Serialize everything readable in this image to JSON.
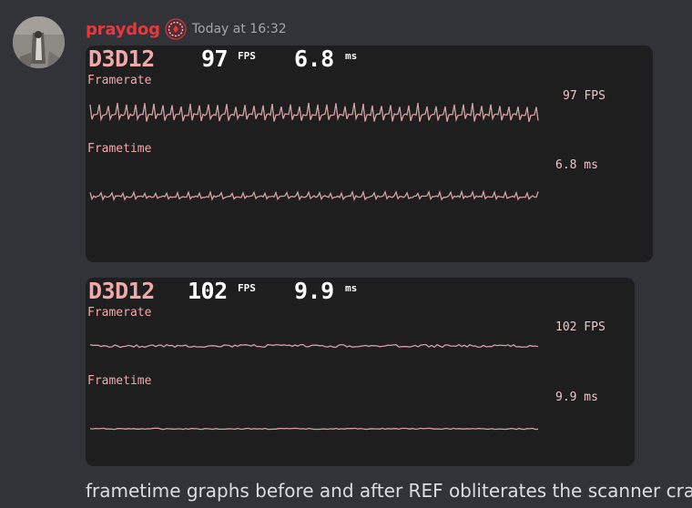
{
  "message": {
    "username": "praydog",
    "badge_icon": "role-badge-icon",
    "timestamp": "Today at 16:32",
    "caption": "frametime graphs before and after REF obliterates the scanner crap"
  },
  "overlays": [
    {
      "api": "D3D12",
      "fps": "97",
      "fps_unit": "FPS",
      "ms": "6.8",
      "ms_unit": "ms",
      "framerate_label": "Framerate",
      "frametime_label": "Frametime",
      "framerate_side": "97 FPS",
      "frametime_side": "6.8 ms",
      "graph_style": "spiky"
    },
    {
      "api": "D3D12",
      "fps": "102",
      "fps_unit": "FPS",
      "ms": "9.9",
      "ms_unit": "ms",
      "framerate_label": "Framerate",
      "frametime_label": "Frametime",
      "framerate_side": "102 FPS",
      "frametime_side": "9.9 ms",
      "graph_style": "flat"
    }
  ],
  "colors": {
    "background": "#313338",
    "overlay_bg": "#1f1e1f",
    "username": "#e8383e",
    "overlay_accent": "#f0a8a8",
    "graph_line": "#d4a0a0"
  }
}
